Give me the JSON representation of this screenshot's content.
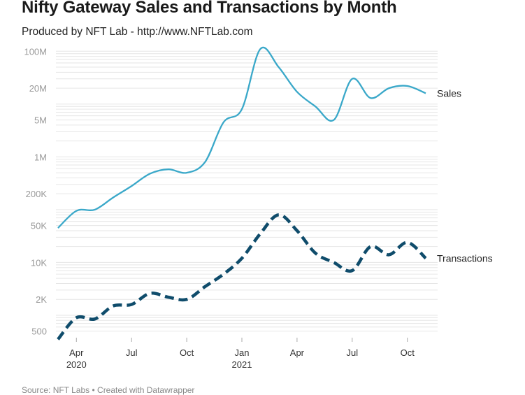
{
  "title": "Nifty Gateway Sales and Transactions by Month",
  "subtitle": "Produced by NFT Lab - http://www.NFTLab.com",
  "source": "Source: NFT Labs • Created with Datawrapper",
  "colors": {
    "sales": "#3aa8c9",
    "transactions": "#0f4c6b",
    "grid": "#e6e6e6"
  },
  "chart_data": {
    "type": "line",
    "title": "Nifty Gateway Sales and Transactions by Month",
    "subtitle": "Produced by NFT Lab - http://www.NFTLab.com",
    "xlabel": "",
    "ylabel": "",
    "y_scale": "log",
    "ylim": [
      400,
      150000000
    ],
    "grid": true,
    "legend": "inline labels at line ends",
    "y_ticks": [
      {
        "value": 500,
        "label": "500"
      },
      {
        "value": 2000,
        "label": "2K"
      },
      {
        "value": 10000,
        "label": "10K"
      },
      {
        "value": 50000,
        "label": "50K"
      },
      {
        "value": 200000,
        "label": "200K"
      },
      {
        "value": 1000000,
        "label": "1M"
      },
      {
        "value": 5000000,
        "label": "5M"
      },
      {
        "value": 20000000,
        "label": "20M"
      },
      {
        "value": 100000000,
        "label": "100M"
      }
    ],
    "x_ticks": [
      {
        "value": "2020-04",
        "label": "Apr",
        "sublabel": "2020"
      },
      {
        "value": "2020-07",
        "label": "Jul",
        "sublabel": ""
      },
      {
        "value": "2020-10",
        "label": "Oct",
        "sublabel": ""
      },
      {
        "value": "2021-01",
        "label": "Jan",
        "sublabel": "2021"
      },
      {
        "value": "2021-04",
        "label": "Apr",
        "sublabel": ""
      },
      {
        "value": "2021-07",
        "label": "Jul",
        "sublabel": ""
      },
      {
        "value": "2021-10",
        "label": "Oct",
        "sublabel": ""
      }
    ],
    "x": [
      "2020-03",
      "2020-04",
      "2020-05",
      "2020-06",
      "2020-07",
      "2020-08",
      "2020-09",
      "2020-10",
      "2020-11",
      "2020-12",
      "2021-01",
      "2021-02",
      "2021-03",
      "2021-04",
      "2021-05",
      "2021-06",
      "2021-07",
      "2021-08",
      "2021-09",
      "2021-10",
      "2021-11"
    ],
    "series": [
      {
        "name": "Sales",
        "style": "solid",
        "values": [
          45000,
          95000,
          100000,
          170000,
          280000,
          480000,
          580000,
          500000,
          800000,
          4500000,
          8000000,
          110000000,
          50000000,
          17000000,
          9000000,
          5000000,
          30000000,
          13000000,
          20000000,
          22000000,
          16000000
        ]
      },
      {
        "name": "Transactions",
        "style": "dashed",
        "values": [
          350,
          900,
          850,
          1500,
          1600,
          2600,
          2200,
          2000,
          3500,
          6000,
          12000,
          35000,
          80000,
          40000,
          15000,
          10000,
          7000,
          20000,
          14000,
          24000,
          12000
        ]
      }
    ]
  }
}
